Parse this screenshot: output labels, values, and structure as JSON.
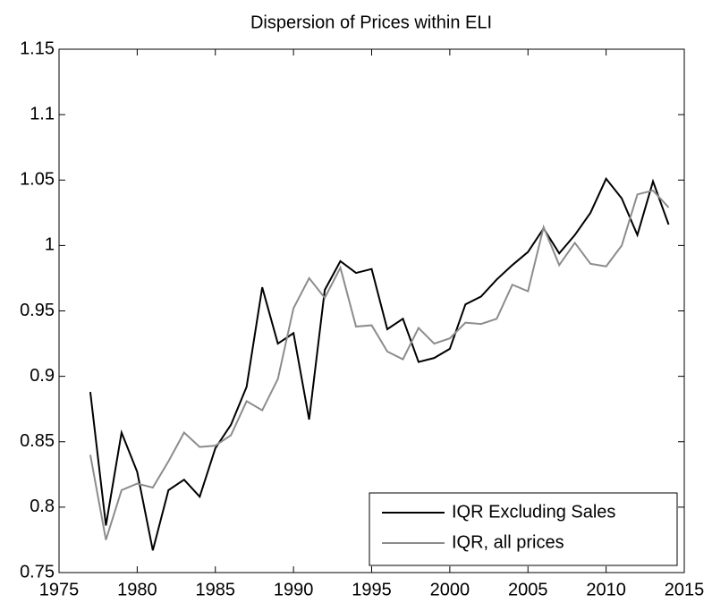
{
  "chart_data": {
    "type": "line",
    "title": "Dispersion of Prices within ELI",
    "x": [
      1977,
      1978,
      1979,
      1980,
      1981,
      1982,
      1983,
      1984,
      1985,
      1986,
      1987,
      1988,
      1989,
      1990,
      1991,
      1992,
      1993,
      1994,
      1995,
      1996,
      1997,
      1998,
      1999,
      2000,
      2001,
      2002,
      2003,
      2004,
      2005,
      2006,
      2007,
      2008,
      2009,
      2010,
      2011,
      2012,
      2013,
      2014
    ],
    "series": [
      {
        "name": "IQR Excluding Sales",
        "color": "#000000",
        "values": [
          0.888,
          0.786,
          0.857,
          0.827,
          0.767,
          0.813,
          0.821,
          0.808,
          0.845,
          0.863,
          0.892,
          0.968,
          0.925,
          0.933,
          0.867,
          0.966,
          0.988,
          0.979,
          0.982,
          0.936,
          0.944,
          0.911,
          0.914,
          0.921,
          0.955,
          0.961,
          0.974,
          0.985,
          0.995,
          1.013,
          0.994,
          1.008,
          1.025,
          1.051,
          1.036,
          1.008,
          1.049,
          1.016
        ]
      },
      {
        "name": "IQR, all prices",
        "color": "#8c8c8c",
        "values": [
          0.84,
          0.775,
          0.813,
          0.818,
          0.815,
          0.835,
          0.857,
          0.846,
          0.847,
          0.855,
          0.881,
          0.874,
          0.898,
          0.952,
          0.975,
          0.96,
          0.983,
          0.938,
          0.939,
          0.919,
          0.913,
          0.937,
          0.925,
          0.929,
          0.941,
          0.94,
          0.944,
          0.97,
          0.965,
          1.014,
          0.985,
          1.002,
          0.986,
          0.984,
          1.0,
          1.039,
          1.042,
          1.029
        ]
      }
    ],
    "xlim": [
      1975,
      2015
    ],
    "xticks": [
      1975,
      1980,
      1985,
      1990,
      1995,
      2000,
      2005,
      2010,
      2015
    ],
    "ylim": [
      0.75,
      1.15
    ],
    "yticks": [
      0.75,
      0.8,
      0.85,
      0.9,
      0.95,
      1,
      1.05,
      1.1,
      1.15
    ],
    "grid": false,
    "legend": "lower right"
  }
}
